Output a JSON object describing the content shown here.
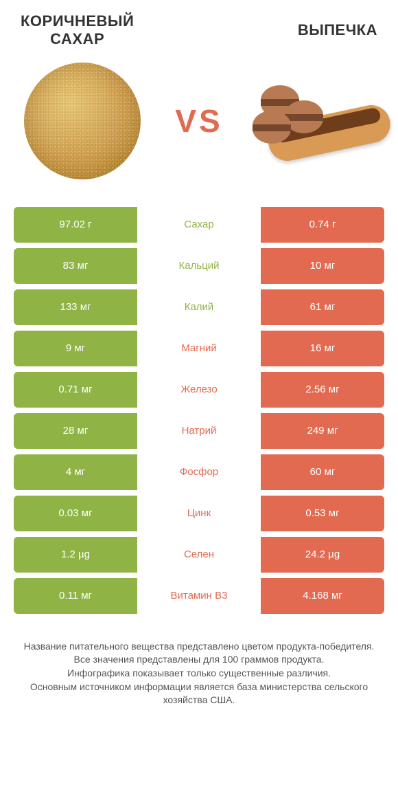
{
  "colors": {
    "left": "#8fb445",
    "right": "#e26a50",
    "text_dim": "#555555",
    "title": "#333333",
    "vs": "#e26a50",
    "eclair_body": "#d89a55",
    "eclair_top": "#6e3d1b",
    "macaron": "#b87a52"
  },
  "header": {
    "left_title": "КОРИЧНЕВЫЙ САХАР",
    "right_title": "ВЫПЕЧКА",
    "title_fontsize": 22,
    "title_color": "#333333"
  },
  "vs": {
    "text": "VS",
    "fontsize": 46
  },
  "rows": [
    {
      "label": "Сахар",
      "left": "97.02 г",
      "right": "0.74 г",
      "winner": "left"
    },
    {
      "label": "Кальций",
      "left": "83 мг",
      "right": "10 мг",
      "winner": "left"
    },
    {
      "label": "Калий",
      "left": "133 мг",
      "right": "61 мг",
      "winner": "left"
    },
    {
      "label": "Магний",
      "left": "9 мг",
      "right": "16 мг",
      "winner": "right"
    },
    {
      "label": "Железо",
      "left": "0.71 мг",
      "right": "2.56 мг",
      "winner": "right"
    },
    {
      "label": "Натрий",
      "left": "28 мг",
      "right": "249 мг",
      "winner": "right"
    },
    {
      "label": "Фосфор",
      "left": "4 мг",
      "right": "60 мг",
      "winner": "right"
    },
    {
      "label": "Цинк",
      "left": "0.03 мг",
      "right": "0.53 мг",
      "winner": "right"
    },
    {
      "label": "Селен",
      "left": "1.2 µg",
      "right": "24.2 µg",
      "winner": "right"
    },
    {
      "label": "Витамин B3",
      "left": "0.11 мг",
      "right": "4.168 мг",
      "winner": "right"
    }
  ],
  "footer": {
    "lines": [
      "Название питательного вещества представлено цветом продукта-победителя.",
      "Все значения представлены для 100 граммов продукта.",
      "Инфографика показывает только существенные различия.",
      "Основным источником информации является база министерства сельского хозяйства США."
    ],
    "fontsize": 14,
    "color": "#555555"
  }
}
